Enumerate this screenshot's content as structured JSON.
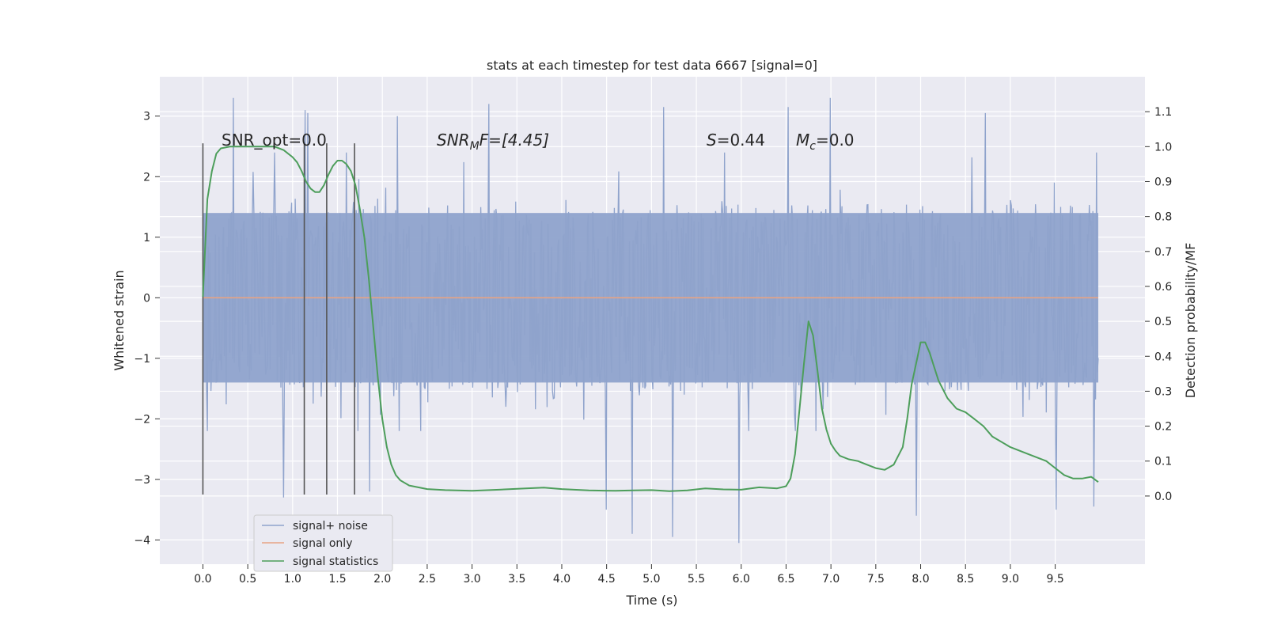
{
  "chart_data": {
    "type": "line",
    "title": "stats at each timestep for test data 6667 [signal=0]",
    "xlabel": "Time (s)",
    "ylabel": "Whitened strain",
    "y2label": "Detection probability/MF",
    "xlim": [
      -0.48,
      10.5
    ],
    "ylim": [
      -4.4,
      3.65
    ],
    "y2lim": [
      -0.195,
      1.2
    ],
    "x_ticks": [
      "0.0",
      "0.5",
      "1.0",
      "1.5",
      "2.0",
      "2.5",
      "3.0",
      "3.5",
      "4.0",
      "4.5",
      "5.0",
      "5.5",
      "6.0",
      "6.5",
      "7.0",
      "7.5",
      "8.0",
      "8.5",
      "9.0",
      "9.5"
    ],
    "y_ticks": [
      "3",
      "2",
      "1",
      "0",
      "−1",
      "−2",
      "−3",
      "−4"
    ],
    "y2_ticks": [
      "1.1",
      "1.0",
      "0.9",
      "0.8",
      "0.7",
      "0.6",
      "0.5",
      "0.4",
      "0.3",
      "0.2",
      "0.1",
      "0.0"
    ],
    "grid": true,
    "legend_position": "lower-left",
    "annotations": {
      "snr_opt": "SNR_opt=0.0",
      "snr_mf_main": "SNR",
      "snr_mf_sub": "M",
      "snr_mf_rest": "F=[4.45]",
      "s_main": "S",
      "s_rest": "=0.44",
      "mc_main": "M",
      "mc_sub": "c",
      "mc_rest": "=0.0"
    },
    "vertical_lines_x": [
      0.0,
      1.13,
      1.38,
      1.69
    ],
    "vertical_lines_y": [
      -3.25,
      2.55
    ],
    "series": [
      {
        "name": "signal+ noise",
        "color": "#8fa3cc",
        "axis": "left",
        "sample_count": 1000,
        "x_range": [
          0.0,
          9.98
        ],
        "core_amplitude": 1.4,
        "peak_samples": [
          {
            "x": 0.34,
            "y": 3.3
          },
          {
            "x": 1.14,
            "y": 3.1
          },
          {
            "x": 1.17,
            "y": 3.05
          },
          {
            "x": 2.17,
            "y": 3.0
          },
          {
            "x": 3.19,
            "y": 3.2
          },
          {
            "x": 5.13,
            "y": 3.15
          },
          {
            "x": 6.52,
            "y": 3.15
          },
          {
            "x": 6.99,
            "y": 3.3
          },
          {
            "x": 8.72,
            "y": 3.05
          },
          {
            "x": 0.9,
            "y": -3.3
          },
          {
            "x": 1.86,
            "y": -3.2
          },
          {
            "x": 4.5,
            "y": -3.5
          },
          {
            "x": 4.79,
            "y": -3.9
          },
          {
            "x": 5.23,
            "y": -3.95
          },
          {
            "x": 5.97,
            "y": -4.05
          },
          {
            "x": 7.95,
            "y": -3.6
          },
          {
            "x": 9.51,
            "y": -3.5
          },
          {
            "x": 9.93,
            "y": -3.45
          }
        ]
      },
      {
        "name": "signal only",
        "color": "#e8a384",
        "axis": "left",
        "x": [
          0.0,
          9.98
        ],
        "y": [
          0.0,
          0.0
        ]
      },
      {
        "name": "signal statistics",
        "color": "#4d9e5b",
        "axis": "right",
        "x": [
          0.0,
          0.05,
          0.1,
          0.15,
          0.2,
          0.3,
          0.4,
          0.5,
          0.6,
          0.7,
          0.8,
          0.9,
          1.0,
          1.05,
          1.1,
          1.15,
          1.2,
          1.25,
          1.3,
          1.35,
          1.4,
          1.45,
          1.5,
          1.55,
          1.6,
          1.65,
          1.7,
          1.75,
          1.8,
          1.85,
          1.9,
          1.95,
          2.0,
          2.05,
          2.1,
          2.15,
          2.2,
          2.3,
          2.4,
          2.5,
          2.7,
          3.0,
          3.3,
          3.6,
          3.8,
          4.0,
          4.3,
          4.6,
          4.8,
          5.0,
          5.2,
          5.4,
          5.6,
          5.8,
          6.0,
          6.2,
          6.4,
          6.5,
          6.55,
          6.6,
          6.65,
          6.7,
          6.75,
          6.8,
          6.85,
          6.9,
          6.95,
          7.0,
          7.05,
          7.1,
          7.2,
          7.3,
          7.4,
          7.5,
          7.6,
          7.7,
          7.8,
          7.85,
          7.9,
          7.95,
          8.0,
          8.05,
          8.1,
          8.15,
          8.2,
          8.3,
          8.4,
          8.5,
          8.6,
          8.7,
          8.8,
          9.0,
          9.2,
          9.4,
          9.5,
          9.6,
          9.7,
          9.8,
          9.9,
          9.98
        ],
        "y": [
          0.57,
          0.85,
          0.93,
          0.98,
          0.995,
          1.0,
          1.0,
          1.0,
          1.0,
          1.0,
          1.0,
          0.99,
          0.97,
          0.955,
          0.93,
          0.9,
          0.88,
          0.87,
          0.87,
          0.89,
          0.92,
          0.945,
          0.96,
          0.96,
          0.95,
          0.93,
          0.89,
          0.82,
          0.74,
          0.62,
          0.48,
          0.34,
          0.22,
          0.14,
          0.09,
          0.06,
          0.045,
          0.03,
          0.025,
          0.02,
          0.017,
          0.015,
          0.018,
          0.022,
          0.024,
          0.02,
          0.016,
          0.015,
          0.016,
          0.017,
          0.014,
          0.016,
          0.022,
          0.019,
          0.018,
          0.025,
          0.022,
          0.028,
          0.05,
          0.12,
          0.25,
          0.38,
          0.5,
          0.46,
          0.36,
          0.25,
          0.19,
          0.15,
          0.13,
          0.115,
          0.105,
          0.1,
          0.09,
          0.08,
          0.075,
          0.09,
          0.14,
          0.22,
          0.32,
          0.38,
          0.44,
          0.44,
          0.41,
          0.37,
          0.33,
          0.28,
          0.25,
          0.24,
          0.22,
          0.2,
          0.17,
          0.14,
          0.12,
          0.1,
          0.08,
          0.06,
          0.05,
          0.05,
          0.055,
          0.04
        ]
      }
    ]
  }
}
